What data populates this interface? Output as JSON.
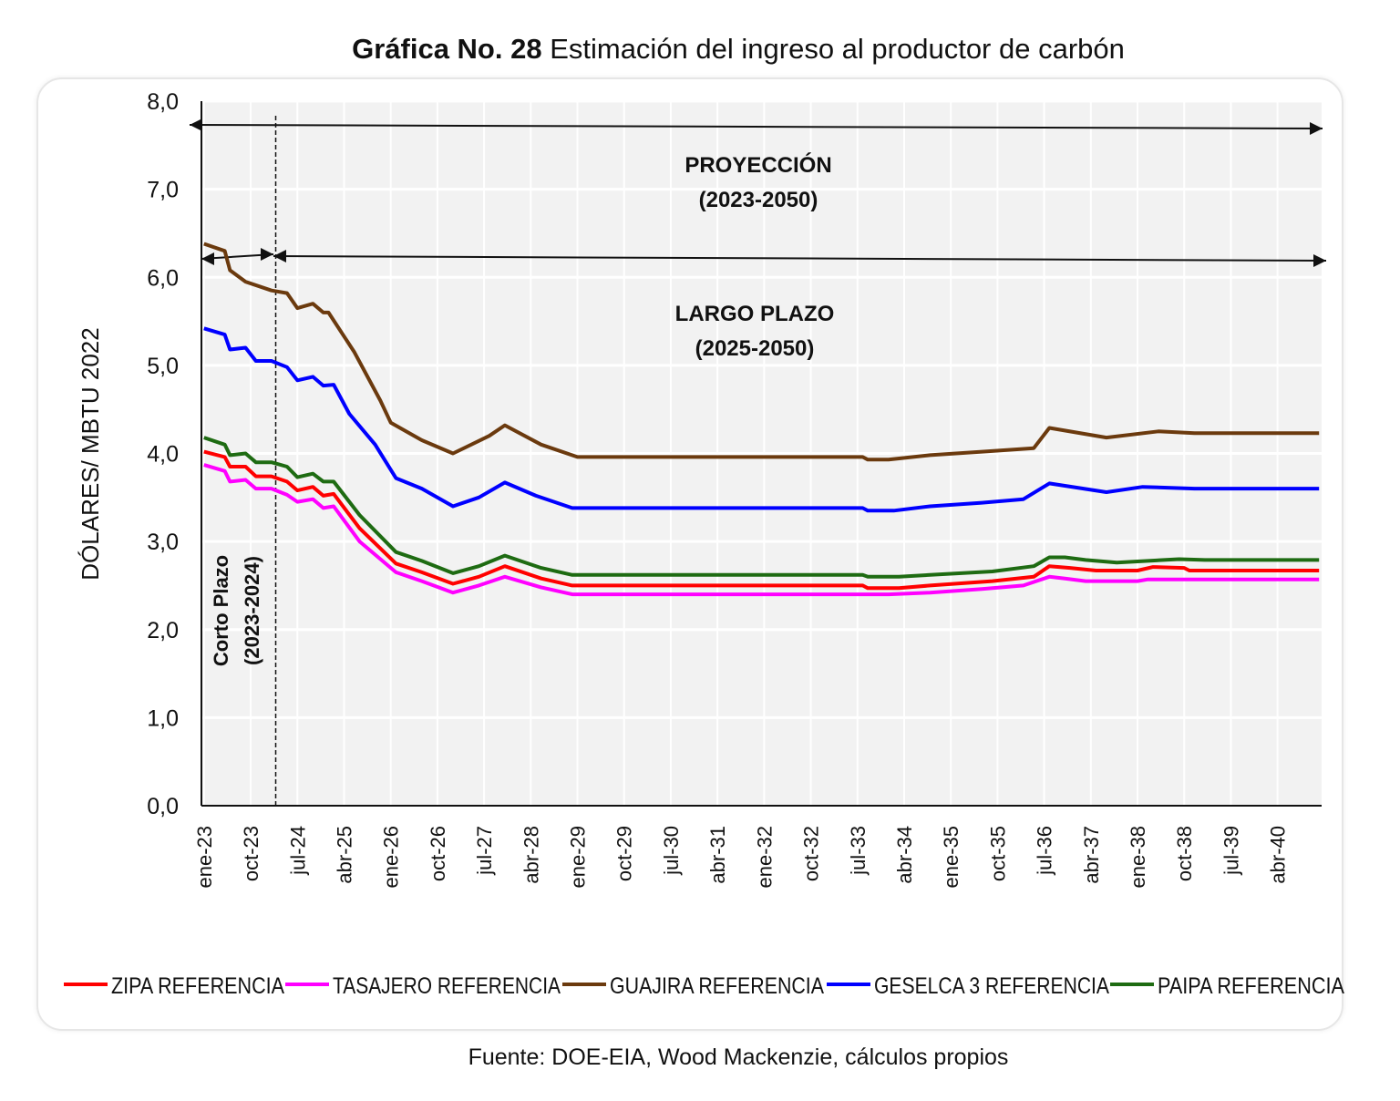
{
  "title": {
    "bold": "Gráfica No. 28",
    "rest": " Estimación del ingreso al productor de carbón"
  },
  "source": "Fuente: DOE-EIA, Wood Mackenzie, cálculos propios",
  "chart_data": {
    "type": "line",
    "title": "Gráfica No. 28 Estimación del ingreso al productor de carbón",
    "ylabel": "DÓLARES/ MBTU 2022",
    "ylim": [
      0,
      8
    ],
    "yticks": [
      "0,0",
      "1,0",
      "2,0",
      "3,0",
      "4,0",
      "5,0",
      "6,0",
      "7,0",
      "8,0"
    ],
    "xrange": [
      "ene-23",
      "dic-40"
    ],
    "xticks": [
      "ene-23",
      "oct-23",
      "jul-24",
      "abr-25",
      "ene-26",
      "oct-26",
      "jul-27",
      "abr-28",
      "ene-29",
      "oct-29",
      "jul-30",
      "abr-31",
      "ene-32",
      "oct-32",
      "jul-33",
      "abr-34",
      "ene-35",
      "oct-35",
      "jul-36",
      "abr-37",
      "ene-38",
      "oct-38",
      "jul-39",
      "abr-40"
    ],
    "grid": true,
    "legend": "bottom",
    "annotations": {
      "proyeccion": [
        "PROYECCIÓN",
        "(2023-2050)"
      ],
      "largo_plazo": [
        "LARGO PLAZO",
        "(2025-2050)"
      ],
      "corto_plazo": [
        "Corto Plazo",
        "(2023-2024)"
      ],
      "divider_at": "mar-24"
    },
    "series": [
      {
        "name": "ZIPA REFERENCIA",
        "color": "#ff0000",
        "x": [
          "ene-23",
          "may-23",
          "jun-23",
          "sep-23",
          "nov-23",
          "feb-24",
          "may-24",
          "jul-24",
          "oct-24",
          "dic-24",
          "feb-25",
          "jul-25",
          "feb-26",
          "jul-26",
          "ene-27",
          "jun-27",
          "nov-27",
          "jun-28",
          "dic-28",
          "ago-33",
          "sep-33",
          "mar-34",
          "sep-34",
          "sep-35",
          "may-36",
          "ago-36",
          "dic-36",
          "may-37",
          "ene-38",
          "abr-38",
          "oct-38",
          "nov-38",
          "dic-40"
        ],
        "y": [
          4.02,
          3.96,
          3.85,
          3.85,
          3.74,
          3.74,
          3.68,
          3.58,
          3.62,
          3.52,
          3.54,
          3.15,
          2.75,
          2.65,
          2.52,
          2.6,
          2.72,
          2.58,
          2.5,
          2.5,
          2.47,
          2.47,
          2.5,
          2.55,
          2.6,
          2.72,
          2.7,
          2.67,
          2.67,
          2.71,
          2.7,
          2.67,
          2.67
        ]
      },
      {
        "name": "TASAJERO REFERENCIA",
        "color": "#ff00ff",
        "x": [
          "ene-23",
          "may-23",
          "jun-23",
          "sep-23",
          "nov-23",
          "feb-24",
          "may-24",
          "jul-24",
          "oct-24",
          "dic-24",
          "feb-25",
          "jul-25",
          "feb-26",
          "jul-26",
          "ene-27",
          "jun-27",
          "nov-27",
          "jun-28",
          "dic-28",
          "ene-34",
          "sep-34",
          "jul-35",
          "mar-36",
          "ago-36",
          "nov-36",
          "mar-37",
          "ene-38",
          "mar-38",
          "dic-40"
        ],
        "y": [
          3.87,
          3.8,
          3.68,
          3.7,
          3.6,
          3.6,
          3.53,
          3.45,
          3.48,
          3.38,
          3.4,
          3.0,
          2.65,
          2.55,
          2.42,
          2.5,
          2.6,
          2.48,
          2.4,
          2.4,
          2.42,
          2.46,
          2.5,
          2.6,
          2.58,
          2.55,
          2.55,
          2.57,
          2.57
        ]
      },
      {
        "name": "GUAJIRA REFERENCIA",
        "color": "#6b3a0e",
        "x": [
          "ene-23",
          "may-23",
          "jun-23",
          "sep-23",
          "feb-24",
          "may-24",
          "jul-24",
          "oct-24",
          "dic-24",
          "ene-25",
          "jun-25",
          "nov-25",
          "ene-26",
          "jul-26",
          "ene-27",
          "ago-27",
          "nov-27",
          "jun-28",
          "ene-29",
          "ago-33",
          "sep-33",
          "ene-34",
          "sep-34",
          "jul-35",
          "may-36",
          "ago-36",
          "jul-37",
          "may-38",
          "dic-38",
          "dic-40"
        ],
        "y": [
          6.38,
          6.3,
          6.08,
          5.95,
          5.85,
          5.82,
          5.65,
          5.7,
          5.6,
          5.6,
          5.15,
          4.6,
          4.35,
          4.15,
          4.0,
          4.2,
          4.32,
          4.1,
          3.96,
          3.96,
          3.93,
          3.93,
          3.98,
          4.02,
          4.06,
          4.29,
          4.18,
          4.25,
          4.23,
          4.23
        ]
      },
      {
        "name": "GESELCA 3 REFERENCIA",
        "color": "#0000ff",
        "x": [
          "ene-23",
          "may-23",
          "jun-23",
          "sep-23",
          "nov-23",
          "feb-24",
          "may-24",
          "jul-24",
          "oct-24",
          "dic-24",
          "feb-25",
          "may-25",
          "oct-25",
          "feb-26",
          "jul-26",
          "ene-27",
          "jun-27",
          "nov-27",
          "may-28",
          "dic-28",
          "ago-33",
          "sep-33",
          "feb-34",
          "sep-34",
          "jul-35",
          "mar-36",
          "ago-36",
          "jul-37",
          "feb-38",
          "dic-38",
          "dic-40"
        ],
        "y": [
          5.42,
          5.35,
          5.18,
          5.2,
          5.05,
          5.05,
          4.98,
          4.83,
          4.87,
          4.77,
          4.78,
          4.45,
          4.1,
          3.72,
          3.6,
          3.4,
          3.5,
          3.67,
          3.52,
          3.38,
          3.38,
          3.35,
          3.35,
          3.4,
          3.44,
          3.48,
          3.66,
          3.56,
          3.62,
          3.6,
          3.6
        ]
      },
      {
        "name": "PAIPA REFERENCIA",
        "color": "#1e6b12",
        "x": [
          "ene-23",
          "may-23",
          "jun-23",
          "sep-23",
          "nov-23",
          "feb-24",
          "may-24",
          "jul-24",
          "oct-24",
          "dic-24",
          "feb-25",
          "jul-25",
          "feb-26",
          "jul-26",
          "ene-27",
          "jun-27",
          "nov-27",
          "jun-28",
          "dic-28",
          "ago-33",
          "sep-33",
          "mar-34",
          "sep-34",
          "sep-35",
          "may-36",
          "ago-36",
          "nov-36",
          "mar-37",
          "sep-37",
          "sep-38",
          "feb-39",
          "dic-40"
        ],
        "y": [
          4.18,
          4.1,
          3.98,
          4.0,
          3.9,
          3.9,
          3.85,
          3.73,
          3.77,
          3.68,
          3.68,
          3.3,
          2.88,
          2.78,
          2.64,
          2.72,
          2.84,
          2.7,
          2.62,
          2.62,
          2.6,
          2.6,
          2.62,
          2.66,
          2.72,
          2.82,
          2.82,
          2.79,
          2.76,
          2.8,
          2.79,
          2.79
        ]
      }
    ]
  }
}
